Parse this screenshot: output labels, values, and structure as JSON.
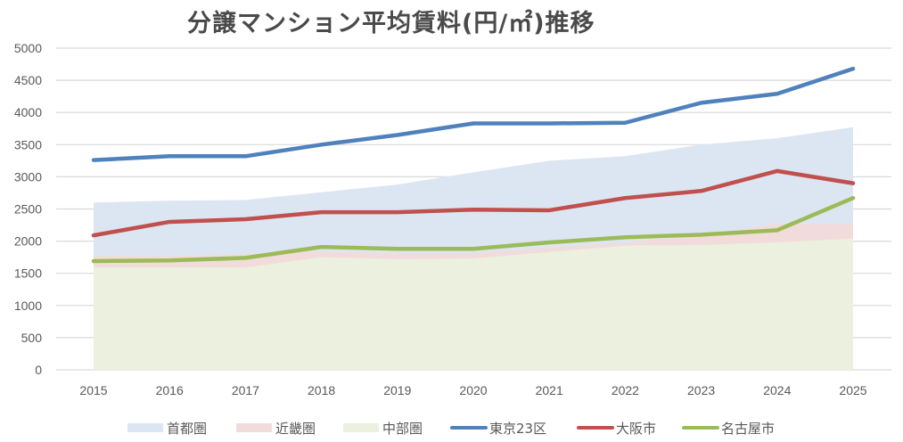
{
  "chart_data": {
    "type": "area+line",
    "title": "分譲マンション平均賃料(円/㎡)推移",
    "xlabel": "",
    "ylabel": "",
    "categories": [
      "2015",
      "2016",
      "2017",
      "2018",
      "2019",
      "2020",
      "2021",
      "2022",
      "2023",
      "2024",
      "2025"
    ],
    "ylim": [
      0,
      5000
    ],
    "yticks": [
      "0",
      "500",
      "1000",
      "1500",
      "2000",
      "2500",
      "3000",
      "3500",
      "4000",
      "4500",
      "5000"
    ],
    "ytick_values": [
      0,
      500,
      1000,
      1500,
      2000,
      2500,
      3000,
      3500,
      4000,
      4500,
      5000
    ],
    "grid": true,
    "legend_position": "bottom",
    "area_series": [
      {
        "name": "首都圏",
        "color": "#dce6f2",
        "values": [
          2600,
          2630,
          2640,
          2760,
          2880,
          3070,
          3250,
          3320,
          3500,
          3600,
          3770
        ]
      },
      {
        "name": "近畿圏",
        "color": "#f2dcdb",
        "values": [
          1770,
          1770,
          1800,
          1840,
          1810,
          1810,
          1900,
          1980,
          2100,
          2270,
          2270
        ]
      },
      {
        "name": "中部圏",
        "color": "#ebf1de",
        "values": [
          1590,
          1590,
          1590,
          1750,
          1720,
          1730,
          1830,
          1930,
          1940,
          1980,
          2040
        ]
      }
    ],
    "line_series": [
      {
        "name": "東京23区",
        "color": "#4f81bd",
        "values": [
          3260,
          3320,
          3320,
          3500,
          3650,
          3830,
          3830,
          3840,
          4150,
          4290,
          4680
        ]
      },
      {
        "name": "大阪市",
        "color": "#c0504d",
        "values": [
          2090,
          2300,
          2340,
          2450,
          2450,
          2490,
          2480,
          2670,
          2780,
          3090,
          2900
        ]
      },
      {
        "name": "名古屋市",
        "color": "#9bbb59",
        "values": [
          1690,
          1700,
          1740,
          1910,
          1880,
          1880,
          1980,
          2060,
          2100,
          2170,
          2670
        ]
      }
    ]
  }
}
